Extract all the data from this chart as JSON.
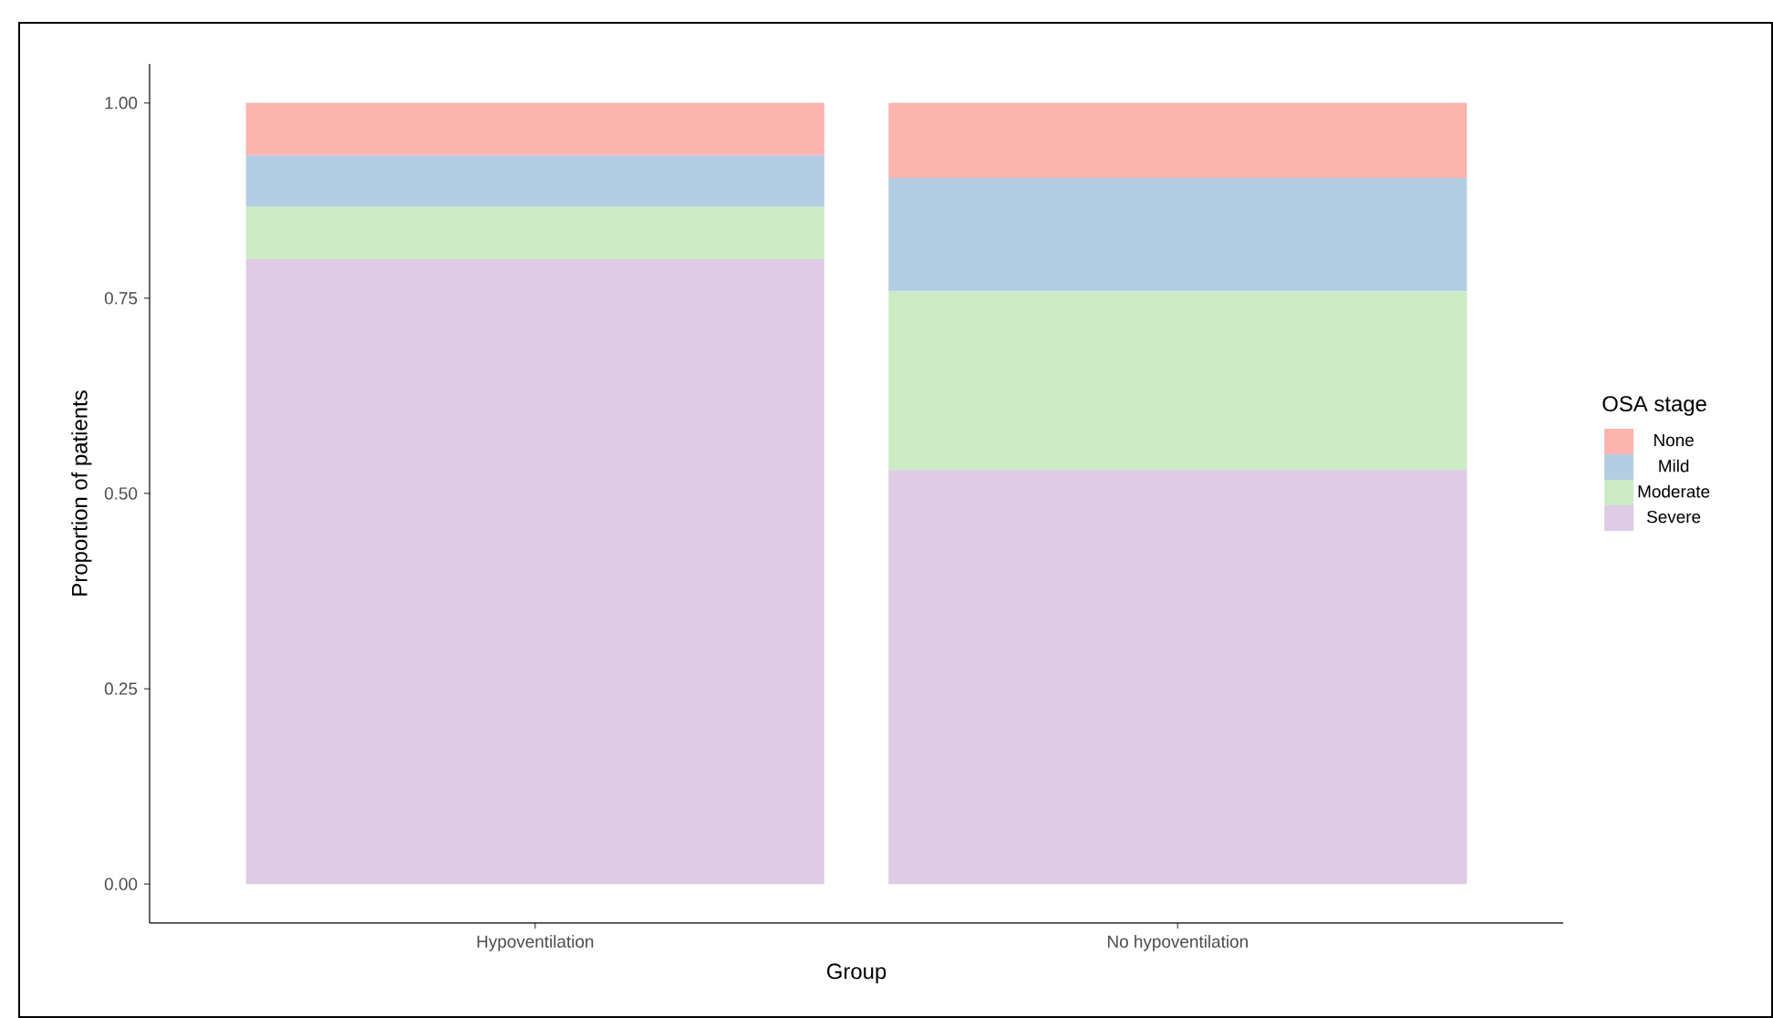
{
  "chart_data": {
    "type": "bar",
    "stacked": true,
    "xlabel": "Group",
    "ylabel": "Proportion of patients",
    "legend_title": "OSA stage",
    "legend": "right",
    "categories": [
      "Hypoventilation",
      "No hypoventilation"
    ],
    "series": [
      {
        "name": "Severe",
        "color": "#decbe4",
        "values": [
          0.8,
          0.53
        ]
      },
      {
        "name": "Moderate",
        "color": "#ccebc5",
        "values": [
          0.067,
          0.229
        ]
      },
      {
        "name": "Mild",
        "color": "#b3cde3",
        "values": [
          0.066,
          0.145
        ]
      },
      {
        "name": "None",
        "color": "#fbb4ae",
        "values": [
          0.067,
          0.096
        ]
      }
    ],
    "ylim": [
      -0.05,
      1.05
    ],
    "yticks": [
      {
        "value": 0,
        "label": "0.00"
      },
      {
        "value": 0.25,
        "label": "0.25"
      },
      {
        "value": 0.5,
        "label": "0.50"
      },
      {
        "value": 0.75,
        "label": "0.75"
      },
      {
        "value": 1,
        "label": "1.00"
      }
    ]
  }
}
